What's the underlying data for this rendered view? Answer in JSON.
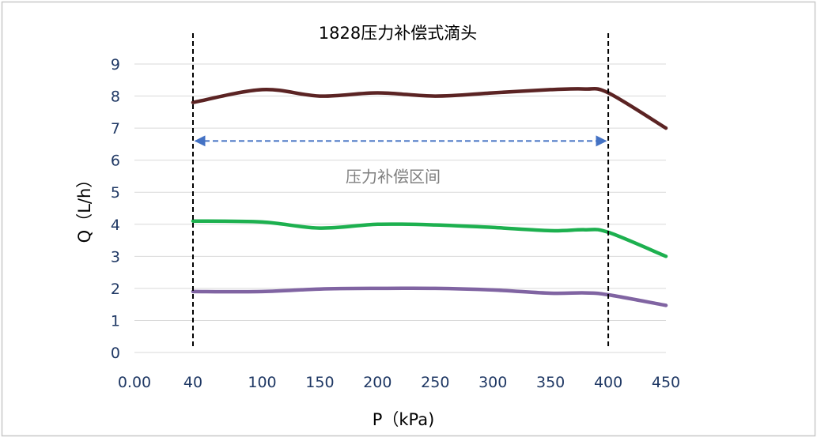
{
  "chart_data": {
    "type": "line",
    "title": "1828压力补偿式滴头",
    "xlabel": "P（kPa)",
    "ylabel": "Q（L/h）",
    "x_tick_labels": [
      "0.00",
      "40",
      "100",
      "150",
      "200",
      "250",
      "300",
      "350",
      "400",
      "450"
    ],
    "x_tick_values": [
      0,
      40,
      100,
      150,
      200,
      250,
      300,
      350,
      400,
      450
    ],
    "ylim": [
      0,
      9
    ],
    "y_ticks": [
      0,
      1,
      2,
      3,
      4,
      5,
      6,
      7,
      8,
      9
    ],
    "grid": true,
    "legend": "none",
    "series": [
      {
        "color": "#5b2323",
        "points": [
          [
            40,
            7.8
          ],
          [
            100,
            8.2
          ],
          [
            150,
            8.0
          ],
          [
            200,
            8.1
          ],
          [
            250,
            8.0
          ],
          [
            300,
            8.1
          ],
          [
            350,
            8.2
          ],
          [
            380,
            8.22
          ],
          [
            400,
            8.1
          ],
          [
            450,
            7.0
          ]
        ]
      },
      {
        "color": "#1db04f",
        "points": [
          [
            40,
            4.1
          ],
          [
            100,
            4.07
          ],
          [
            150,
            3.88
          ],
          [
            200,
            4.0
          ],
          [
            250,
            3.98
          ],
          [
            300,
            3.9
          ],
          [
            350,
            3.8
          ],
          [
            380,
            3.83
          ],
          [
            400,
            3.75
          ],
          [
            450,
            3.0
          ]
        ]
      },
      {
        "color": "#8064a2",
        "points": [
          [
            40,
            1.9
          ],
          [
            100,
            1.9
          ],
          [
            150,
            1.98
          ],
          [
            200,
            2.0
          ],
          [
            250,
            2.0
          ],
          [
            300,
            1.95
          ],
          [
            350,
            1.85
          ],
          [
            380,
            1.86
          ],
          [
            400,
            1.8
          ],
          [
            450,
            1.47
          ]
        ]
      }
    ],
    "reference_lines_x": [
      40,
      400
    ],
    "range_arrow": {
      "from": 40,
      "to": 400,
      "y": 6.6,
      "label": "压力补偿区间"
    }
  }
}
